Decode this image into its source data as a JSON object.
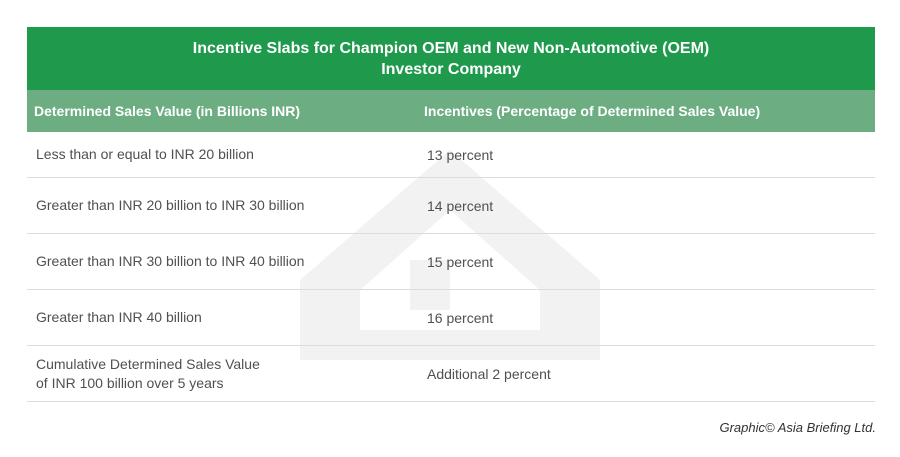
{
  "title": {
    "line1": "Incentive Slabs for Champion OEM and New Non-Automotive (OEM)",
    "line2": "Investor Company"
  },
  "columns": {
    "col1": "Determined Sales Value (in Billions INR)",
    "col2": "Incentives (Percentage of Determined Sales Value)"
  },
  "rows": [
    {
      "sales_value": "Less than or equal to INR 20 billion",
      "incentive": "13 percent"
    },
    {
      "sales_value": "Greater than INR 20 billion to INR 30 billion",
      "incentive": "14 percent"
    },
    {
      "sales_value": "Greater than INR 30 billion to INR 40 billion",
      "incentive": "15 percent"
    },
    {
      "sales_value": "Greater than INR 40 billion",
      "incentive": "16 percent"
    },
    {
      "sales_value_line1": "Cumulative Determined Sales Value",
      "sales_value_line2": "of INR 100 billion over 5 years",
      "incentive": "Additional 2 percent"
    }
  ],
  "credit": "Graphic© Asia Briefing Ltd.",
  "colors": {
    "title_bg": "#1f9a4c",
    "header_bg": "#6cae82",
    "watermark": "#f0f0f0"
  },
  "watermark_icon": "asia-briefing-logo-icon"
}
